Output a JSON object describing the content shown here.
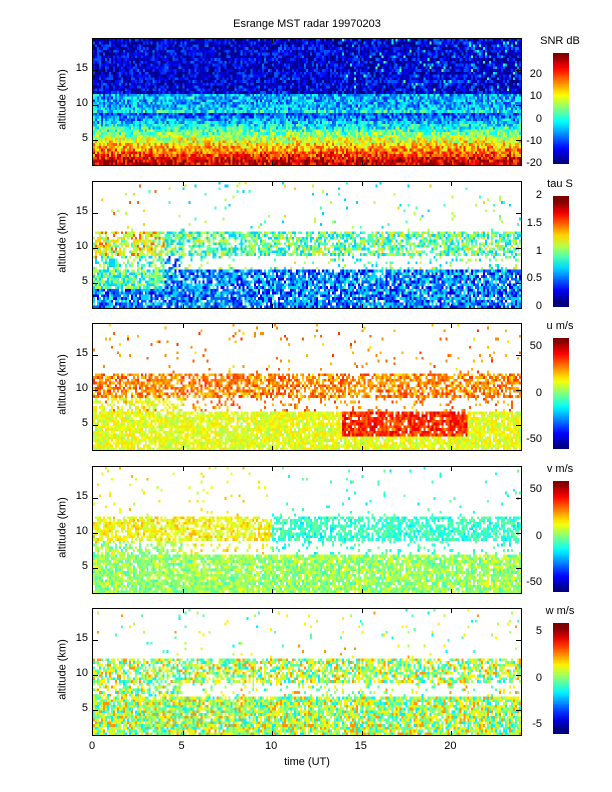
{
  "chart_data": {
    "type": "heatmap",
    "title": "Esrange MST radar 19970203",
    "xlabel": "time (UT)",
    "xlim": [
      0,
      24
    ],
    "xticks": [
      "0",
      "5",
      "10",
      "15",
      "20"
    ],
    "ylim": [
      1.1,
      19.4
    ],
    "panels": [
      {
        "ylabel": "altitude (km)",
        "yticks": [
          "5",
          "10",
          "15"
        ],
        "colorbar_label": "SNR dB",
        "clim": [
          -20,
          30
        ],
        "cticks": [
          "-20",
          "-10",
          "0",
          "10",
          "20"
        ],
        "levels": 30,
        "description_layers": [
          {
            "alt": [
              1,
              2
            ],
            "value": 25
          },
          {
            "alt": [
              2,
              6
            ],
            "value": 12
          },
          {
            "alt": [
              8.5,
              11.5
            ],
            "value": 2
          },
          {
            "alt": [
              12,
              19.4
            ],
            "value": -15
          }
        ]
      },
      {
        "ylabel": "altitude (km)",
        "yticks": [
          "5",
          "10",
          "15"
        ],
        "colorbar_label": "tau S",
        "clim": [
          0,
          2
        ],
        "cticks": [
          "0",
          "0.5",
          "1",
          "1.5",
          "2"
        ],
        "levels": 10,
        "description_layers": [
          {
            "alt": [
              1,
              7
            ],
            "value": 0.6
          },
          {
            "alt": [
              8.5,
              12
            ],
            "value": 0.95
          }
        ]
      },
      {
        "ylabel": "altitude (km)",
        "yticks": [
          "5",
          "10",
          "15"
        ],
        "colorbar_label": "u m/s",
        "clim": [
          -60,
          60
        ],
        "cticks": [
          "-50",
          "0",
          "50"
        ],
        "levels": 24,
        "description_layers": [
          {
            "alt": [
              1,
              7
            ],
            "value": 12
          },
          {
            "alt": [
              8.5,
              12
            ],
            "value": 28
          },
          {
            "alt": [
              3,
              7
            ],
            "time": [
              14,
              21
            ],
            "value": 38
          }
        ]
      },
      {
        "ylabel": "altitude (km)",
        "yticks": [
          "5",
          "10",
          "15"
        ],
        "colorbar_label": "v m/s",
        "clim": [
          -60,
          60
        ],
        "cticks": [
          "-50",
          "0",
          "50"
        ],
        "levels": 24,
        "description_layers": [
          {
            "alt": [
              1,
              7
            ],
            "value": 3
          },
          {
            "alt": [
              8.5,
              12
            ],
            "time": [
              0,
              10
            ],
            "value": 14
          },
          {
            "alt": [
              8.5,
              12
            ],
            "time": [
              10,
              24
            ],
            "value": -8
          }
        ]
      },
      {
        "ylabel": "altitude (km)",
        "yticks": [
          "5",
          "10",
          "15"
        ],
        "colorbar_label": "w m/s",
        "clim": [
          -6,
          6
        ],
        "cticks": [
          "-5",
          "0",
          "5"
        ],
        "levels": 12,
        "description_layers": [
          {
            "alt": [
              1,
              7
            ],
            "value": 0.5
          },
          {
            "alt": [
              8.5,
              12
            ],
            "value": 0.3
          }
        ]
      }
    ]
  }
}
